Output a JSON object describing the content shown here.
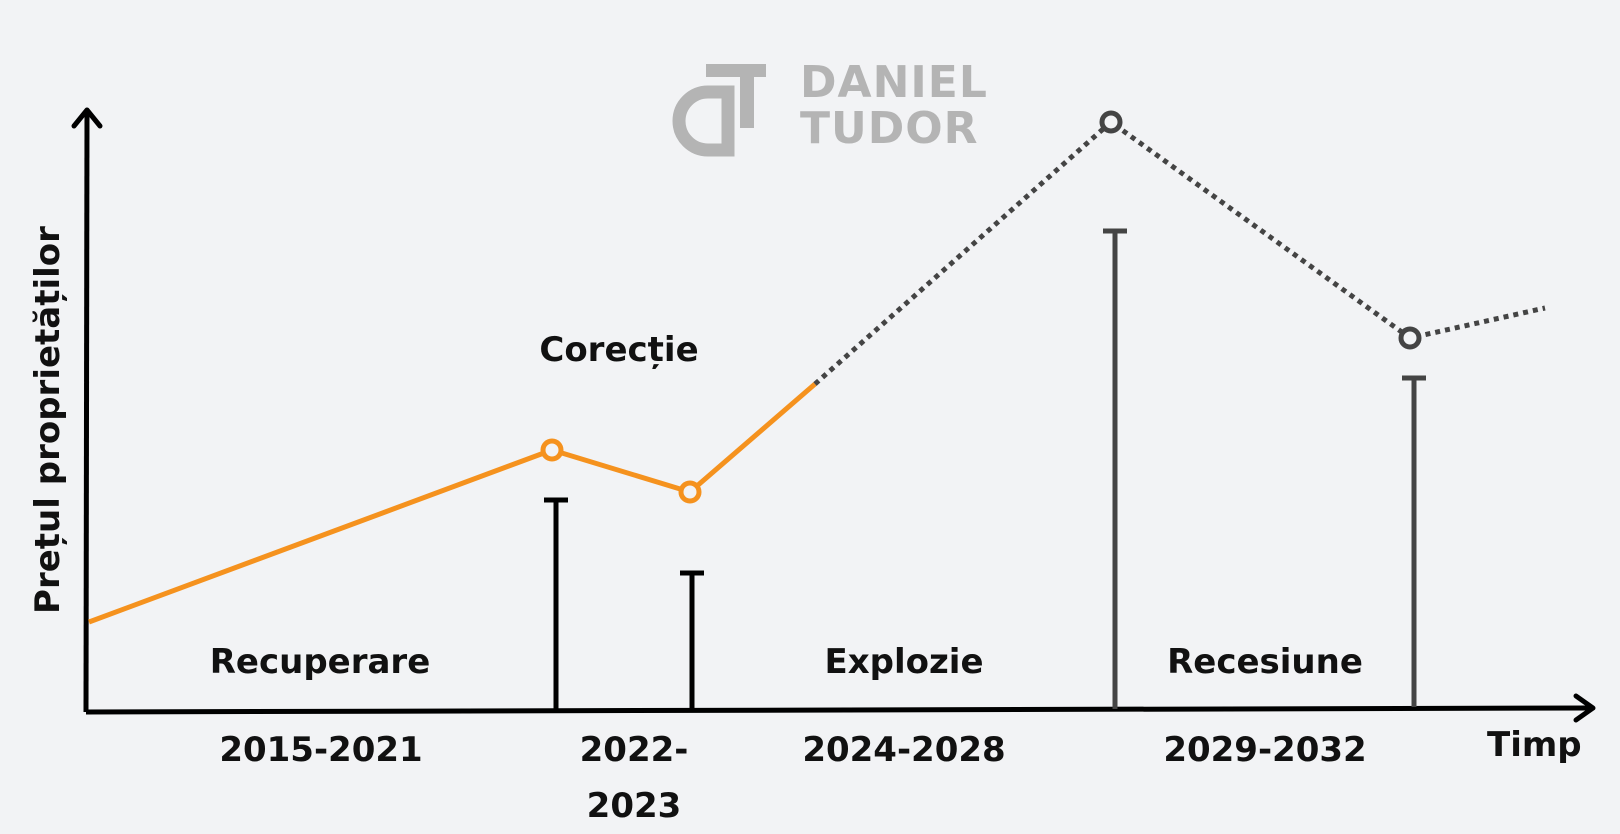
{
  "logo": {
    "line1": "DANIEL",
    "line2": "TUDOR"
  },
  "axes": {
    "y_label": "Prețul proprietăților",
    "x_label": "Timp"
  },
  "phases": {
    "recuperare": "Recuperare",
    "corectie": "Corecție",
    "explozie": "Explozie",
    "recesiune": "Recesiune"
  },
  "periods": {
    "p1": "2015-2021",
    "p2_line1": "2022-",
    "p2_line2": "2023",
    "p3": "2024-2028",
    "p4": "2029-2032"
  },
  "colors": {
    "actual": "#f5921e",
    "projected": "#444444",
    "axis": "#000000",
    "logo": "#b4b4b4"
  }
}
